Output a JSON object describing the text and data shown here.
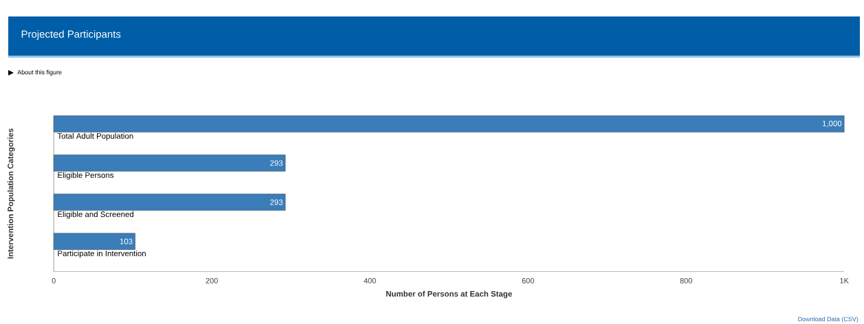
{
  "chart_data": {
    "type": "bar",
    "orientation": "horizontal",
    "title": "Projected Participants",
    "xlabel": "Number of Persons at Each Stage",
    "ylabel": "Intervention Population Categories",
    "categories": [
      "Total Adult Population",
      "Eligible Persons",
      "Eligible and Screened",
      "Participate in Intervention"
    ],
    "values": [
      1000,
      293,
      293,
      103
    ],
    "color": "#3a7db8",
    "value_labels": [
      "1,000",
      "293",
      "293",
      "103"
    ],
    "xlim": [
      0,
      1000
    ],
    "xticks": [
      0,
      200,
      400,
      600,
      800,
      {
        "value": 1000,
        "label": "1K"
      }
    ],
    "annotations": [
      "About this figure",
      "Download Data (CSV)"
    ]
  }
}
